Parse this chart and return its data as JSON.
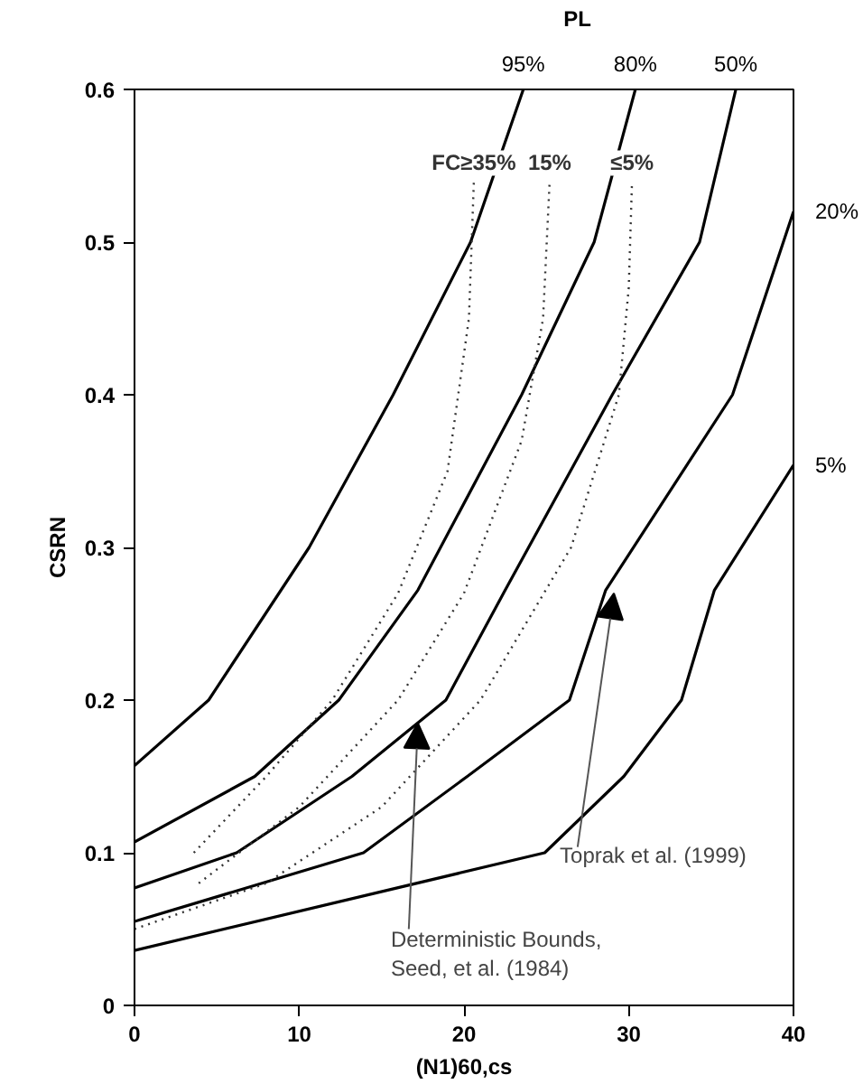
{
  "chart_data": {
    "type": "line",
    "xlabel": "(N1)60,cs",
    "ylabel": "CSRN",
    "xlim": [
      0,
      40
    ],
    "ylim": [
      0,
      0.6
    ],
    "xticks": [
      0,
      10,
      20,
      30,
      40
    ],
    "yticks": [
      0,
      0.1,
      0.2,
      0.3,
      0.4,
      0.5,
      0.6
    ],
    "grid": false,
    "marker": "none",
    "legend_title": "PL",
    "series": [
      {
        "name": "95%",
        "color": "#000000",
        "line_style": "solid",
        "x": [
          0,
          4.5,
          10.6,
          15.7,
          20.4,
          23.6
        ],
        "values": [
          0.157,
          0.2,
          0.3,
          0.4,
          0.5,
          0.6
        ]
      },
      {
        "name": "80%",
        "color": "#000000",
        "line_style": "solid",
        "x": [
          0,
          7.3,
          12.4,
          17.2,
          23.5,
          27.9,
          30.4
        ],
        "values": [
          0.107,
          0.15,
          0.2,
          0.272,
          0.4,
          0.5,
          0.6
        ]
      },
      {
        "name": "50%",
        "color": "#000000",
        "line_style": "solid",
        "x": [
          0,
          6.2,
          13.2,
          18.9,
          22.5,
          29.0,
          34.3,
          36.5
        ],
        "values": [
          0.077,
          0.1,
          0.15,
          0.2,
          0.272,
          0.4,
          0.5,
          0.6
        ]
      },
      {
        "name": "20%",
        "color": "#000000",
        "line_style": "solid",
        "x": [
          0,
          13.9,
          20.2,
          26.4,
          28.6,
          36.3,
          40
        ],
        "values": [
          0.055,
          0.1,
          0.15,
          0.2,
          0.272,
          0.4,
          0.52
        ]
      },
      {
        "name": "5%",
        "color": "#000000",
        "line_style": "solid",
        "x": [
          0,
          24.9,
          29.7,
          33.2,
          35.2,
          40
        ],
        "values": [
          0.036,
          0.1,
          0.15,
          0.2,
          0.272,
          0.354
        ]
      },
      {
        "name": "FC≥35%",
        "color": "#333333",
        "line_style": "dotted",
        "x": [
          3.6,
          8,
          12,
          16,
          19,
          20.3,
          20.6
        ],
        "values": [
          0.1,
          0.15,
          0.2,
          0.27,
          0.35,
          0.45,
          0.54
        ]
      },
      {
        "name": "15%",
        "color": "#333333",
        "line_style": "dotted",
        "x": [
          3.9,
          10,
          16,
          20,
          23.5,
          24.8,
          25.2
        ],
        "values": [
          0.08,
          0.13,
          0.2,
          0.27,
          0.37,
          0.45,
          0.54
        ]
      },
      {
        "name": "≤5%",
        "color": "#333333",
        "line_style": "dotted",
        "x": [
          0,
          8,
          15,
          21,
          26.5,
          29.4,
          30,
          30.2
        ],
        "values": [
          0.05,
          0.08,
          0.13,
          0.2,
          0.3,
          0.4,
          0.47,
          0.54
        ]
      }
    ],
    "annotations": [
      {
        "text": "Toprak et al. (1999)",
        "x": 29.1,
        "y": 0.27
      },
      {
        "text": "Deterministic Bounds,\nSeed, et al. (1984)",
        "x": 17.2,
        "y": 0.185
      }
    ]
  }
}
